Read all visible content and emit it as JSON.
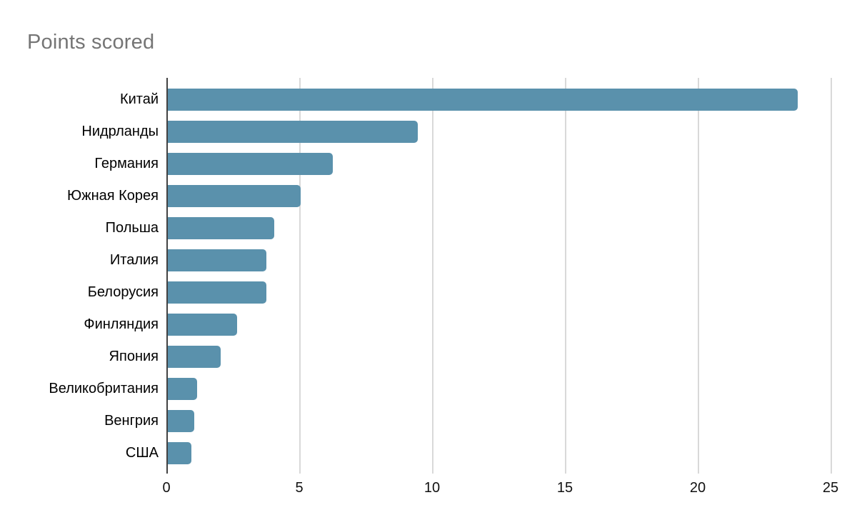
{
  "page": {
    "background": "#ffffff"
  },
  "chart_data": {
    "type": "bar",
    "orientation": "horizontal",
    "title": "Points scored",
    "categories": [
      "Китай",
      "Нидрланды",
      "Германия",
      "Южная Корея",
      "Польша",
      "Италия",
      "Белорусия",
      "Финляндия",
      "Япония",
      "Великобритания",
      "Венгрия",
      "США"
    ],
    "values": [
      23.7,
      9.4,
      6.2,
      5,
      4,
      3.7,
      3.7,
      2.6,
      2,
      1.1,
      1,
      0.9
    ],
    "xlabel": "",
    "ylabel": "",
    "xlim": [
      0,
      25
    ],
    "x_tick_labels": [
      "0",
      "5",
      "10",
      "15",
      "20",
      "25"
    ],
    "x_tick_values": [
      0,
      5,
      10,
      15,
      20,
      25
    ],
    "legend": "none",
    "grid": "vertical",
    "colors": {
      "bar": "#5a91ac",
      "gridline": "#d9d9d9",
      "axis_line": "#424242",
      "title": "#757575",
      "category_label": "#000000",
      "tick_label": "#111111"
    }
  }
}
